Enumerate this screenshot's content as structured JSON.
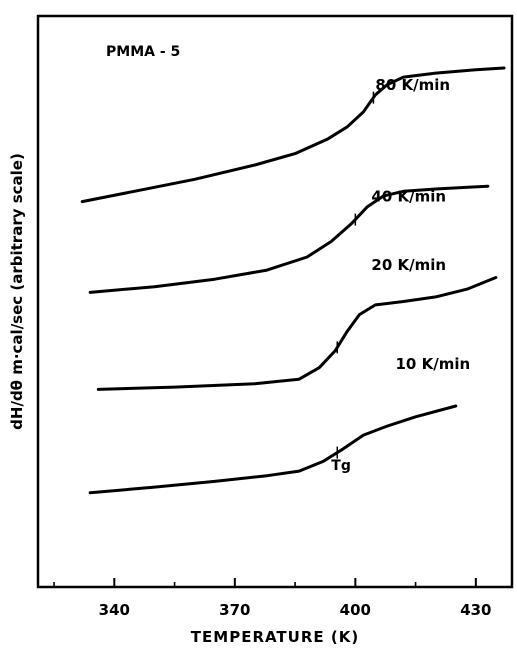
{
  "chart_data": {
    "type": "line",
    "title": "PMMA - 5",
    "xlabel": "TEMPERATURE (K)",
    "ylabel": "dH/dθ m·cal/sec (arbitrary scale)",
    "xlim": [
      321,
      439
    ],
    "ylim": [
      0,
      100
    ],
    "x_ticks": [
      340,
      370,
      400,
      430
    ],
    "minor_x_ticks": [
      325,
      355,
      385,
      415
    ],
    "y_tick_labels": false,
    "grid": false,
    "legend": "none",
    "line_color": "#000000",
    "series": [
      {
        "name": "80 K/min",
        "label_at": [
          405,
          87.0
        ],
        "points": [
          [
            332,
            67.5
          ],
          [
            345,
            69.3
          ],
          [
            360,
            71.4
          ],
          [
            375,
            73.9
          ],
          [
            385,
            75.9
          ],
          [
            393,
            78.4
          ],
          [
            398,
            80.6
          ],
          [
            402,
            83.2
          ],
          [
            405,
            86.2
          ],
          [
            408,
            88.0
          ],
          [
            412,
            89.3
          ],
          [
            420,
            90.0
          ],
          [
            430,
            90.6
          ],
          [
            437,
            90.9
          ]
        ]
      },
      {
        "name": "40 K/min",
        "label_at": [
          404,
          67.5
        ],
        "points": [
          [
            334,
            51.6
          ],
          [
            350,
            52.6
          ],
          [
            365,
            53.9
          ],
          [
            378,
            55.5
          ],
          [
            388,
            57.8
          ],
          [
            394,
            60.5
          ],
          [
            399,
            63.6
          ],
          [
            403,
            66.6
          ],
          [
            407,
            68.5
          ],
          [
            412,
            69.3
          ],
          [
            420,
            69.7
          ],
          [
            428,
            70.0
          ],
          [
            433,
            70.2
          ]
        ]
      },
      {
        "name": "20 K/min",
        "label_at": [
          404,
          55.5
        ],
        "points": [
          [
            336,
            34.6
          ],
          [
            355,
            35.0
          ],
          [
            375,
            35.6
          ],
          [
            386,
            36.4
          ],
          [
            391,
            38.4
          ],
          [
            395,
            41.4
          ],
          [
            398,
            44.8
          ],
          [
            401,
            47.7
          ],
          [
            405,
            49.4
          ],
          [
            412,
            50.0
          ],
          [
            420,
            50.8
          ],
          [
            428,
            52.2
          ],
          [
            435,
            54.2
          ]
        ]
      },
      {
        "name": "10 K/min",
        "label_at": [
          410,
          38.2
        ],
        "points": [
          [
            334,
            16.5
          ],
          [
            350,
            17.5
          ],
          [
            365,
            18.5
          ],
          [
            378,
            19.5
          ],
          [
            386,
            20.3
          ],
          [
            392,
            22.0
          ],
          [
            397,
            24.2
          ],
          [
            402,
            26.6
          ],
          [
            408,
            28.2
          ],
          [
            415,
            29.8
          ],
          [
            425,
            31.7
          ]
        ]
      }
    ],
    "annotations": [
      {
        "text": "Tg",
        "x": 396,
        "y": 20.5
      }
    ],
    "tg_marks": [
      {
        "series": "80 K/min",
        "x": 404.5
      },
      {
        "series": "40 K/min",
        "x": 400
      },
      {
        "series": "20 K/min",
        "x": 395.5
      },
      {
        "series": "10 K/min",
        "x": 395.5
      }
    ]
  }
}
